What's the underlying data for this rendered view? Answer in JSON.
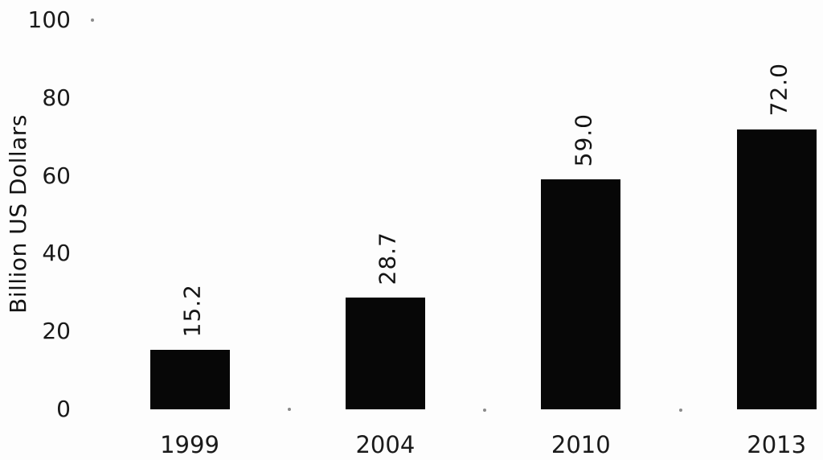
{
  "chart_data": {
    "type": "bar",
    "title": "",
    "xlabel": "",
    "ylabel": "Billion US Dollars",
    "categories": [
      "1999",
      "2004",
      "2010",
      "2013"
    ],
    "values": [
      15.2,
      28.7,
      59.0,
      72.0
    ],
    "value_labels": [
      "15.2",
      "28.7",
      "59.0",
      "72.0"
    ],
    "ylim": [
      0,
      100
    ],
    "yticks": [
      0,
      20,
      40,
      60,
      80,
      100
    ],
    "ytick_labels": [
      "0",
      "20",
      "40",
      "60",
      "80",
      "100"
    ],
    "bar_color": "#070707",
    "background": "#fdfdfd",
    "grid": false,
    "legend": "none",
    "value_label_rotation": "vertical-bottom-to-top",
    "minor_baseline_tick_dots": true
  }
}
